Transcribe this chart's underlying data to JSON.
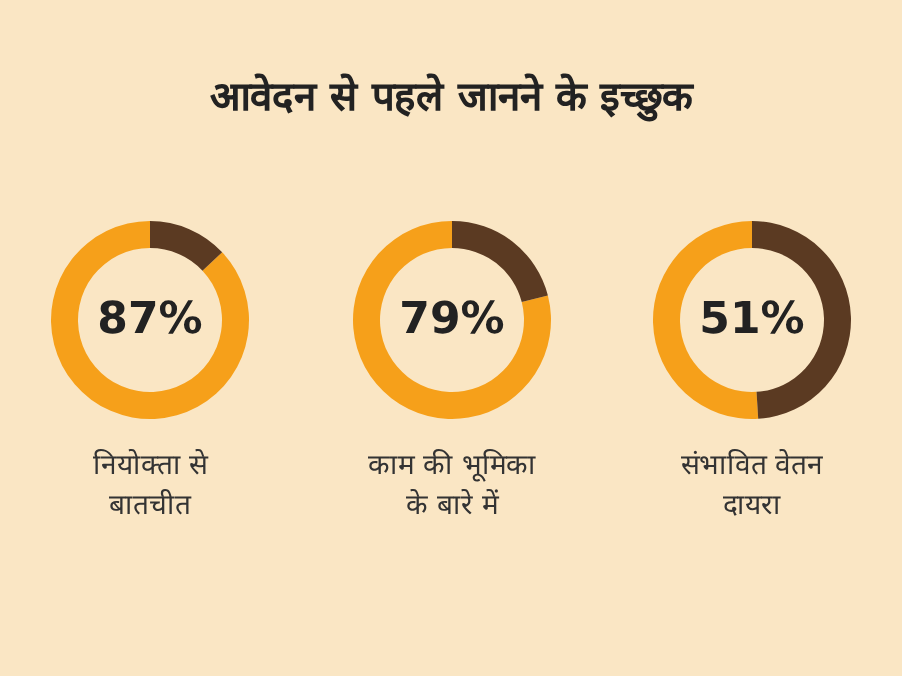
{
  "chart_data": [
    {
      "type": "donut",
      "title": "नियोक्ता से\nबातचीत",
      "annotations": [
        "आवेदन से पहले जानने के इच्छुक"
      ],
      "categories": [
        null,
        null
      ],
      "values": [
        87,
        13
      ],
      "colors": [
        "#f6a01a",
        "#5b3a22"
      ],
      "value_labels": [
        "87%",
        null
      ]
    },
    {
      "type": "donut",
      "title": "काम की भूमिका\nके बारे में",
      "categories": [
        null,
        null
      ],
      "values": [
        79,
        21
      ],
      "colors": [
        "#f6a01a",
        "#5b3a22"
      ],
      "value_labels": [
        "79%",
        null
      ]
    },
    {
      "type": "donut",
      "title": "संभावित वेतन\nदायरा",
      "categories": [
        null,
        null
      ],
      "values": [
        51,
        49
      ],
      "colors": [
        "#f6a01a",
        "#5b3a22"
      ],
      "value_labels": [
        "51%",
        null
      ]
    }
  ]
}
